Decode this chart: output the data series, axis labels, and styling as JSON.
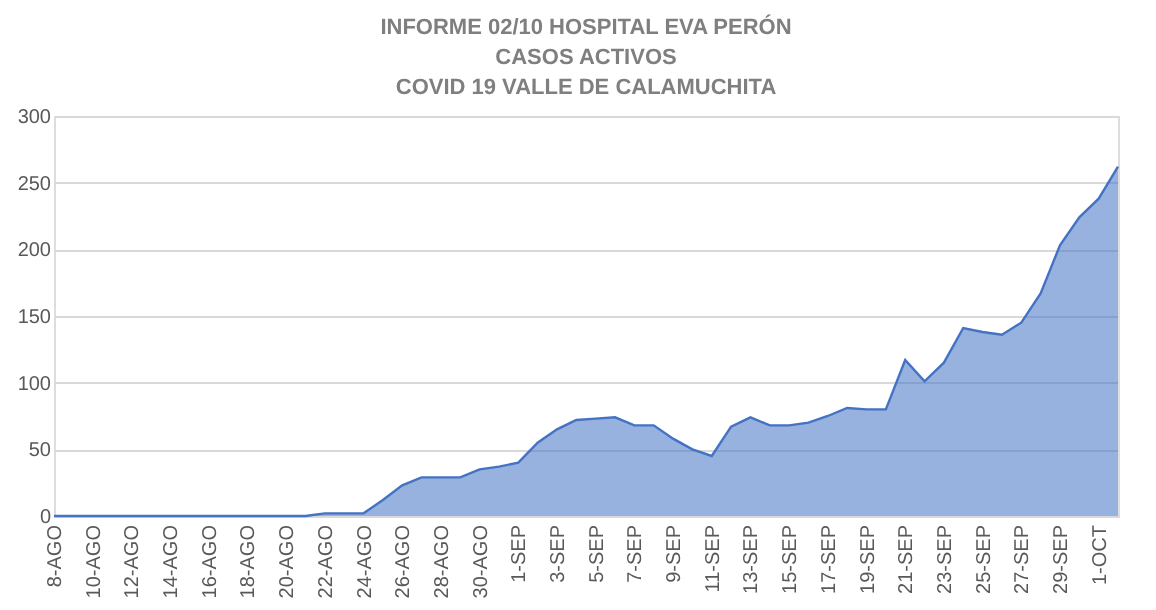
{
  "chart_data": {
    "type": "area",
    "title": [
      "INFORME 02/10 HOSPITAL  EVA PERÓN",
      "CASOS ACTIVOS",
      "COVID 19 VALLE DE CALAMUCHITA"
    ],
    "categories": [
      "8-AGO",
      null,
      "10-AGO",
      null,
      "12-AGO",
      null,
      "14-AGO",
      null,
      "16-AGO",
      null,
      "18-AGO",
      null,
      "20-AGO",
      null,
      "22-AGO",
      null,
      "24-AGO",
      null,
      "26-AGO",
      null,
      "28-AGO",
      null,
      "30-AGO",
      null,
      "1-SEP",
      null,
      "3-SEP",
      null,
      "5-SEP",
      null,
      "7-SEP",
      null,
      "9-SEP",
      null,
      "11-SEP",
      null,
      "13-SEP",
      null,
      "15-SEP",
      null,
      "17-SEP",
      null,
      "19-SEP",
      null,
      "21-SEP",
      null,
      "23-SEP",
      null,
      "25-SEP",
      null,
      "27-SEP",
      null,
      "29-SEP",
      null,
      "1-OCT",
      null
    ],
    "series": [
      {
        "color": "#4472c4",
        "values": [
          0,
          0,
          0,
          0,
          0,
          0,
          0,
          0,
          0,
          0,
          0,
          0,
          0,
          0,
          2,
          2,
          2,
          12,
          23,
          29,
          29,
          29,
          35,
          37,
          40,
          55,
          65,
          72,
          73,
          74,
          68,
          68,
          58,
          50,
          45,
          67,
          74,
          68,
          68,
          70,
          75,
          81,
          80,
          80,
          117,
          101,
          115,
          141,
          138,
          136,
          145,
          167,
          203,
          224,
          238,
          262
        ]
      }
    ],
    "ylim": [
      0,
      300
    ],
    "yticks": [
      0,
      50,
      100,
      150,
      200,
      250,
      300
    ],
    "grid": "y"
  }
}
